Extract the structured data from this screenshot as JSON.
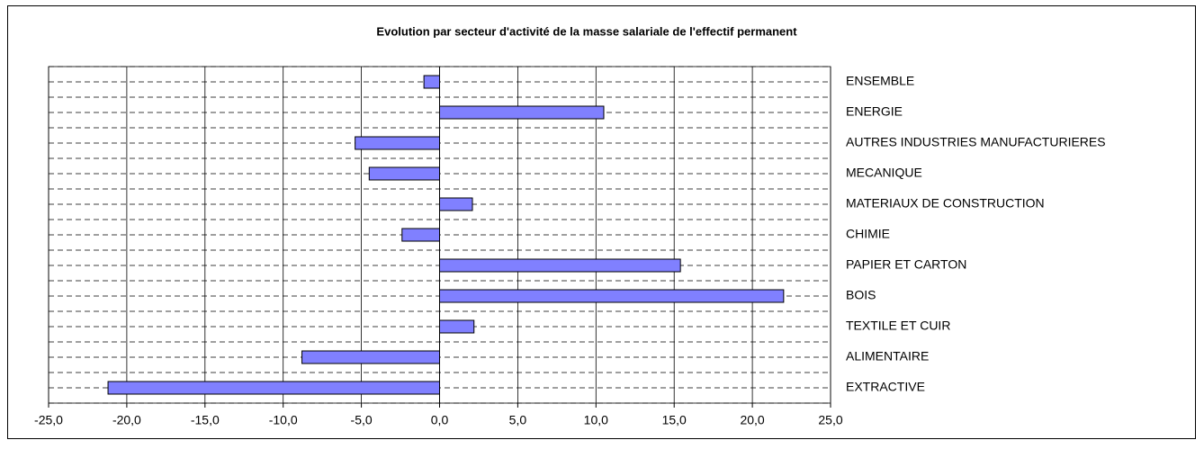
{
  "chart_data": {
    "type": "barh",
    "title": "Evolution par secteur d'activité de la masse salariale de l'effectif permanent",
    "categories": [
      "ENSEMBLE",
      "ENERGIE",
      "AUTRES INDUSTRIES MANUFACTURIERES",
      "MECANIQUE",
      "MATERIAUX DE CONSTRUCTION",
      "CHIMIE",
      "PAPIER ET CARTON",
      "BOIS",
      "TEXTILE ET CUIR",
      "ALIMENTAIRE",
      "EXTRACTIVE"
    ],
    "values": [
      -1.0,
      10.5,
      -5.4,
      -4.5,
      2.1,
      -2.4,
      15.4,
      22.0,
      2.2,
      -8.8,
      -21.2
    ],
    "color": "#8080ff",
    "xlim": [
      -25,
      25
    ],
    "xticks": [
      {
        "value": -25,
        "label": "-25,0"
      },
      {
        "value": -20,
        "label": "-20,0"
      },
      {
        "value": -15,
        "label": "-15,0"
      },
      {
        "value": -10,
        "label": "-10,0"
      },
      {
        "value": -5,
        "label": "-5,0"
      },
      {
        "value": 0,
        "label": "0,0"
      },
      {
        "value": 5,
        "label": "5,0"
      },
      {
        "value": 10,
        "label": "10,0"
      },
      {
        "value": 15,
        "label": "15,0"
      },
      {
        "value": 20,
        "label": "20,0"
      },
      {
        "value": 25,
        "label": "25,0"
      }
    ],
    "grid": true
  }
}
